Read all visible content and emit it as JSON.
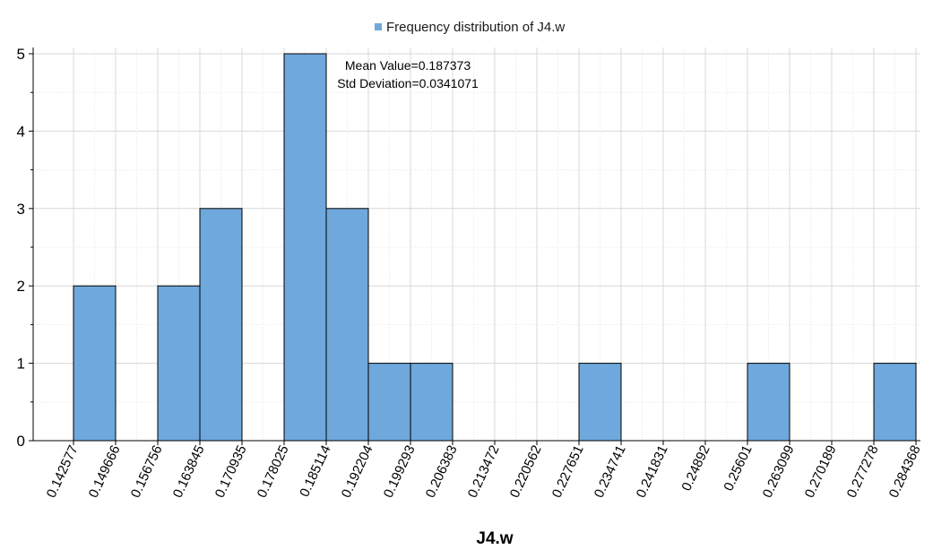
{
  "chart_data": {
    "type": "bar",
    "legend": {
      "label": "Frequency distribution of J4.w",
      "color": "#6fa8dc",
      "position": "top-center"
    },
    "xlabel": "J4.w",
    "ylabel": "",
    "ylim": [
      0,
      5
    ],
    "y_ticks": [
      "0",
      "1",
      "2",
      "3",
      "4",
      "5"
    ],
    "bin_edges": [
      "0.142577",
      "0.149666",
      "0.156756",
      "0.163845",
      "0.170935",
      "0.178025",
      "0.185114",
      "0.192204",
      "0.199293",
      "0.206383",
      "0.213472",
      "0.220562",
      "0.227651",
      "0.234741",
      "0.241831",
      "0.24892",
      "0.25601",
      "0.263099",
      "0.270189",
      "0.277278",
      "0.284368"
    ],
    "values": [
      2,
      0,
      2,
      3,
      0,
      5,
      3,
      1,
      1,
      0,
      0,
      0,
      1,
      0,
      0,
      0,
      1,
      0,
      0,
      1
    ],
    "annotations": [
      "Mean Value=0.187373",
      "Std Deviation=0.0341071"
    ],
    "grid": true
  }
}
